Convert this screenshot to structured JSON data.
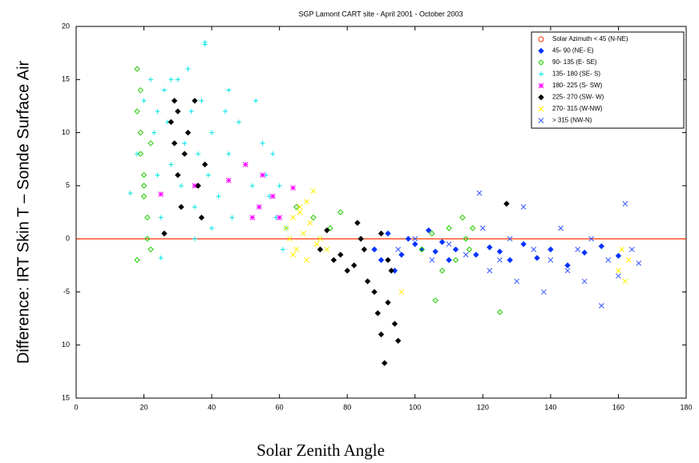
{
  "chart_data": {
    "type": "scatter",
    "title": "SGP Lamont CART site - April 2001 - October 2003",
    "x_label": "Solar Zenith Angle",
    "y_label": "Difference: IRT Skin T – Sonde Surface Air",
    "xlim": [
      0,
      180
    ],
    "xticks": [
      0,
      20,
      40,
      60,
      80,
      100,
      120,
      140,
      160,
      180
    ],
    "ylim": [
      -15,
      20
    ],
    "yticks": [
      {
        "value": -15,
        "label": "15"
      },
      {
        "value": -10,
        "label": "10"
      },
      -5,
      0,
      5,
      10,
      15,
      20
    ],
    "reference_line": {
      "y": 0,
      "color": "#ff3300"
    },
    "legend": "upper right",
    "series": [
      {
        "name": "Solar Azimuth < 45 (N-NE)",
        "color": "#ff3300",
        "marker": "circle",
        "x": [],
        "y": []
      },
      {
        "name": "45- 90 (NE- E)",
        "color": "#0033ff",
        "marker": "diamond",
        "x": [
          88,
          90,
          92,
          94,
          96,
          98,
          100,
          102,
          104,
          106,
          108,
          110,
          112,
          118,
          122,
          125,
          128,
          132,
          136,
          140,
          145,
          150,
          155,
          160
        ],
        "y": [
          -1,
          -2,
          0.5,
          -3,
          -1.5,
          0,
          -0.5,
          -1,
          0.8,
          -1.2,
          -0.3,
          -2,
          -1,
          -1.5,
          -0.8,
          -1.2,
          -2,
          -0.5,
          -1.8,
          -1,
          -2.5,
          -1.3,
          -0.7,
          -1.6
        ]
      },
      {
        "name": "90- 135 (E- SE)",
        "color": "#22cc00",
        "marker": "open-diamond",
        "x": [
          18,
          18,
          19,
          19,
          20,
          20,
          21,
          21,
          22,
          22,
          18,
          19,
          20,
          65,
          70,
          75,
          78,
          102,
          105,
          108,
          110,
          112,
          114,
          115,
          116,
          117,
          106,
          125
        ],
        "y": [
          16,
          12,
          10,
          8,
          6,
          4,
          2,
          0,
          -1,
          9,
          -2,
          14,
          5,
          3,
          2,
          1,
          2.5,
          -1,
          0.5,
          -3,
          1,
          -2,
          2,
          0,
          -1,
          1,
          -5.8,
          -6.9
        ]
      },
      {
        "name": "135- 180 (SE- S)",
        "color": "#00e5e5",
        "marker": "plus",
        "x": [
          16,
          18,
          20,
          22,
          23,
          24,
          25,
          26,
          27,
          28,
          30,
          31,
          32,
          33,
          34,
          35,
          36,
          37,
          38,
          39,
          40,
          42,
          44,
          45,
          46,
          48,
          50,
          52,
          53,
          54,
          55,
          56,
          57,
          58,
          59,
          60,
          61,
          62,
          25,
          28,
          38,
          40,
          24,
          45,
          35
        ],
        "y": [
          4.3,
          8,
          13,
          15,
          10,
          6,
          2,
          14,
          11,
          7,
          15,
          5,
          9,
          16,
          12,
          3,
          8,
          13,
          18.5,
          6,
          10,
          4,
          12,
          8,
          2,
          11,
          7,
          5,
          13,
          3,
          9,
          6,
          4,
          8,
          2,
          5,
          -1,
          1,
          -1.8,
          15,
          18.3,
          1,
          12,
          14,
          0
        ]
      },
      {
        "name": "180- 225 (S- SW)",
        "color": "#ff00ff",
        "marker": "star",
        "x": [
          25,
          35,
          45,
          50,
          52,
          54,
          55,
          58,
          60,
          64
        ],
        "y": [
          4.2,
          5,
          5.5,
          7,
          2,
          3,
          6,
          4,
          2,
          4.8
        ]
      },
      {
        "name": "225- 270 (SW- W)",
        "color": "#000000",
        "marker": "diamond",
        "x": [
          28,
          29,
          29,
          30,
          30,
          31,
          32,
          33,
          35,
          36,
          37,
          38,
          26,
          72,
          74,
          76,
          78,
          80,
          82,
          84,
          86,
          88,
          89,
          90,
          91,
          92,
          93,
          94,
          95,
          83,
          85,
          90,
          92,
          127
        ],
        "y": [
          11,
          13,
          9,
          12,
          6,
          3,
          8,
          10,
          13,
          5,
          2,
          7,
          0.5,
          -1,
          0.8,
          -2,
          -1.5,
          -3,
          -2.5,
          0,
          -4,
          -5,
          -7,
          -9,
          -11.7,
          -6,
          -3,
          -8,
          -9.6,
          1.5,
          -1,
          0.5,
          -2,
          3.3
        ]
      },
      {
        "name": "270- 315 (W-NW)",
        "color": "#ffee00",
        "marker": "cross",
        "x": [
          62,
          63,
          64,
          65,
          66,
          67,
          68,
          69,
          70,
          71,
          72,
          64,
          66,
          68,
          74,
          96,
          160,
          161,
          162,
          163
        ],
        "y": [
          1,
          0,
          2,
          -1,
          3,
          0.5,
          -2,
          1.5,
          4.5,
          -0.5,
          0,
          -1.5,
          2.5,
          3.5,
          -1,
          -5,
          -3,
          -1,
          -4,
          -2
        ]
      },
      {
        "name": "> 315 (NW-N)",
        "color": "#3355ff",
        "marker": "cross",
        "x": [
          95,
          100,
          105,
          110,
          115,
          119,
          120,
          122,
          125,
          128,
          130,
          132,
          135,
          138,
          140,
          143,
          145,
          148,
          150,
          152,
          155,
          157,
          160,
          162,
          164,
          166
        ],
        "y": [
          -1,
          0,
          -2,
          -0.5,
          -1.5,
          4.3,
          1,
          -3,
          -2,
          0,
          -4,
          3,
          -1,
          -5,
          -2,
          1,
          -3,
          -1,
          -4,
          0,
          -6.3,
          -2,
          -3.5,
          3.3,
          -1,
          -2.3
        ]
      }
    ]
  }
}
